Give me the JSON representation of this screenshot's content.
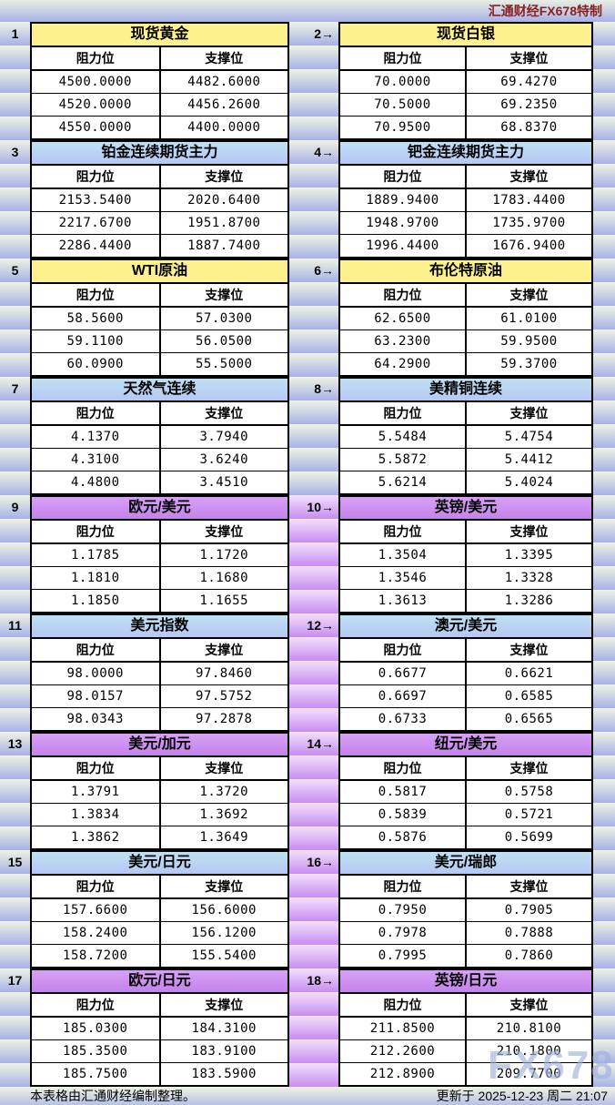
{
  "meta": {
    "brand_top": "汇通财经FX678特制",
    "footer_left": "本表格由汇通财经编制整理。",
    "footer_right": "更新于 2025-12-23 周二 21:07",
    "watermark": "FX678"
  },
  "labels": {
    "resistance": "阻力位",
    "support": "支撑位",
    "arrow": "→"
  },
  "colors": {
    "yellow_header": "#fdf18e",
    "blue_header_top": "#bfe1f3",
    "blue_header_bottom": "#b5c7f3",
    "purple_header_top": "#d8a0f6",
    "purple_header_bottom": "#c482ea",
    "stripe_top": "#eef3e2",
    "stripe_bottom": "#a7b1e8",
    "purple_stripe_top": "#f3e0fc",
    "purple_stripe_bottom": "#c78df0",
    "brand_red": "#8b2222"
  },
  "blocks": [
    {
      "left": {
        "num": "1",
        "title": "现货黄金",
        "style": "yellow",
        "rows": [
          [
            "4500.0000",
            "4482.6000"
          ],
          [
            "4520.0000",
            "4456.2600"
          ],
          [
            "4550.0000",
            "4400.0000"
          ]
        ]
      },
      "right": {
        "num": "2",
        "title": "现货白银",
        "style": "yellow",
        "rows": [
          [
            "70.0000",
            "69.4270"
          ],
          [
            "70.5000",
            "69.2350"
          ],
          [
            "70.9500",
            "68.8370"
          ]
        ]
      }
    },
    {
      "left": {
        "num": "3",
        "title": "铂金连续期货主力",
        "style": "blue",
        "rows": [
          [
            "2153.5400",
            "2020.6400"
          ],
          [
            "2217.6700",
            "1951.8700"
          ],
          [
            "2286.4400",
            "1887.7400"
          ]
        ]
      },
      "right": {
        "num": "4",
        "title": "钯金连续期货主力",
        "style": "blue",
        "rows": [
          [
            "1889.9400",
            "1783.4400"
          ],
          [
            "1948.9700",
            "1735.9700"
          ],
          [
            "1996.4400",
            "1676.9400"
          ]
        ]
      }
    },
    {
      "left": {
        "num": "5",
        "title": "WTI原油",
        "style": "yellow",
        "rows": [
          [
            "58.5600",
            "57.0300"
          ],
          [
            "59.1100",
            "56.0500"
          ],
          [
            "60.0900",
            "55.5000"
          ]
        ]
      },
      "right": {
        "num": "6",
        "title": "布伦特原油",
        "style": "yellow",
        "rows": [
          [
            "62.6500",
            "61.0100"
          ],
          [
            "63.2300",
            "59.9500"
          ],
          [
            "64.2900",
            "59.3700"
          ]
        ]
      }
    },
    {
      "left": {
        "num": "7",
        "title": "天然气连续",
        "style": "blue",
        "rows": [
          [
            "4.1370",
            "3.7940"
          ],
          [
            "4.3100",
            "3.6240"
          ],
          [
            "4.4800",
            "3.4510"
          ]
        ]
      },
      "right": {
        "num": "8",
        "title": "美精铜连续",
        "style": "blue",
        "rows": [
          [
            "5.5484",
            "5.4754"
          ],
          [
            "5.5872",
            "5.4412"
          ],
          [
            "5.6214",
            "5.4024"
          ]
        ]
      }
    },
    {
      "left": {
        "num": "9",
        "title": "欧元/美元",
        "style": "purple",
        "rows": [
          [
            "1.1785",
            "1.1720"
          ],
          [
            "1.1810",
            "1.1680"
          ],
          [
            "1.1850",
            "1.1655"
          ]
        ]
      },
      "right": {
        "num": "10",
        "title": "英镑/美元",
        "style": "purple",
        "rows": [
          [
            "1.3504",
            "1.3395"
          ],
          [
            "1.3546",
            "1.3328"
          ],
          [
            "1.3613",
            "1.3286"
          ]
        ]
      }
    },
    {
      "left": {
        "num": "11",
        "title": "美元指数",
        "style": "blue",
        "rows": [
          [
            "98.0000",
            "97.8460"
          ],
          [
            "98.0157",
            "97.5752"
          ],
          [
            "98.0343",
            "97.2878"
          ]
        ]
      },
      "right": {
        "num": "12",
        "title": "澳元/美元",
        "style": "blue",
        "rows": [
          [
            "0.6677",
            "0.6621"
          ],
          [
            "0.6697",
            "0.6585"
          ],
          [
            "0.6733",
            "0.6565"
          ]
        ]
      }
    },
    {
      "left": {
        "num": "13",
        "title": "美元/加元",
        "style": "purple",
        "rows": [
          [
            "1.3791",
            "1.3720"
          ],
          [
            "1.3834",
            "1.3692"
          ],
          [
            "1.3862",
            "1.3649"
          ]
        ]
      },
      "right": {
        "num": "14",
        "title": "纽元/美元",
        "style": "purple",
        "rows": [
          [
            "0.5817",
            "0.5758"
          ],
          [
            "0.5839",
            "0.5721"
          ],
          [
            "0.5876",
            "0.5699"
          ]
        ]
      }
    },
    {
      "left": {
        "num": "15",
        "title": "美元/日元",
        "style": "blue",
        "rows": [
          [
            "157.6600",
            "156.6000"
          ],
          [
            "158.2400",
            "156.1200"
          ],
          [
            "158.7200",
            "155.5400"
          ]
        ]
      },
      "right": {
        "num": "16",
        "title": "美元/瑞郎",
        "style": "blue",
        "rows": [
          [
            "0.7950",
            "0.7905"
          ],
          [
            "0.7978",
            "0.7888"
          ],
          [
            "0.7995",
            "0.7860"
          ]
        ]
      }
    },
    {
      "left": {
        "num": "17",
        "title": "欧元/日元",
        "style": "purple",
        "rows": [
          [
            "185.0300",
            "184.3100"
          ],
          [
            "185.3500",
            "183.9100"
          ],
          [
            "185.7500",
            "183.5900"
          ]
        ]
      },
      "right": {
        "num": "18",
        "title": "英镑/日元",
        "style": "purple",
        "rows": [
          [
            "211.8500",
            "210.8100"
          ],
          [
            "212.2600",
            "210.1800"
          ],
          [
            "212.8900",
            "209.7700"
          ]
        ]
      }
    }
  ]
}
